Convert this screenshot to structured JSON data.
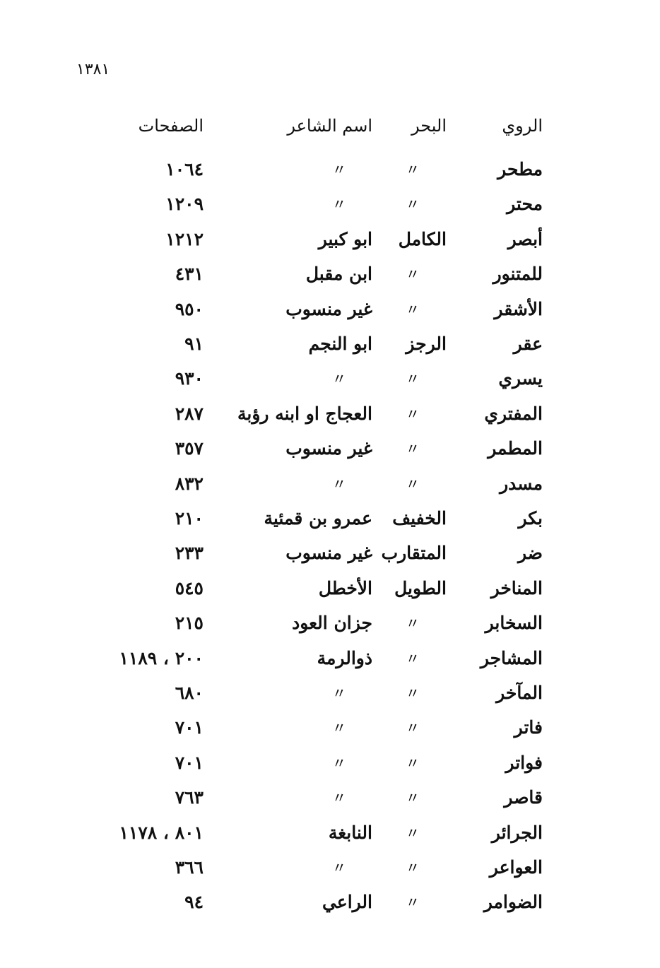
{
  "page_number": "١٣٨١",
  "table": {
    "headers": {
      "rawi": "الروي",
      "bahr": "البحر",
      "poet": "اسم الشاعر",
      "pages": "الصفحات"
    },
    "ditto_mark": "〃",
    "rows": [
      {
        "rawi": "مطحر",
        "bahr": "〃",
        "poet": "〃",
        "pages": "١٠٦٤"
      },
      {
        "rawi": "محتر",
        "bahr": "〃",
        "poet": "〃",
        "pages": "١٢٠٩"
      },
      {
        "rawi": "أبصر",
        "bahr": "الكامل",
        "poet": "ابو كبير",
        "pages": "١٢١٢"
      },
      {
        "rawi": "للمتنور",
        "bahr": "〃",
        "poet": "ابن مقبل",
        "pages": "٤٣١"
      },
      {
        "rawi": "الأشقر",
        "bahr": "〃",
        "poet": "غير منسوب",
        "pages": "٩٥٠"
      },
      {
        "rawi": "عقر",
        "bahr": "الرجز",
        "poet": "ابو النجم",
        "pages": "٩١"
      },
      {
        "rawi": "يسري",
        "bahr": "〃",
        "poet": "〃",
        "pages": "٩٣٠"
      },
      {
        "rawi": "المفتري",
        "bahr": "〃",
        "poet": "العجاج او ابنه رؤبة",
        "pages": "٢٨٧"
      },
      {
        "rawi": "المطمر",
        "bahr": "〃",
        "poet": "غير منسوب",
        "pages": "٣٥٧"
      },
      {
        "rawi": "مسدر",
        "bahr": "〃",
        "poet": "〃",
        "pages": "٨٣٢"
      },
      {
        "rawi": "بكر",
        "bahr": "الخفيف",
        "poet": "عمرو بن قمئية",
        "pages": "٢١٠"
      },
      {
        "rawi": "ضر",
        "bahr": "المتقارب",
        "poet": "غير منسوب",
        "pages": "٢٣٣"
      },
      {
        "rawi": "المناخر",
        "bahr": "الطويل",
        "poet": "الأخطل",
        "pages": "٥٤٥"
      },
      {
        "rawi": "السخابر",
        "bahr": "〃",
        "poet": "جزان العود",
        "pages": "٢١٥"
      },
      {
        "rawi": "المشاجر",
        "bahr": "〃",
        "poet": "ذوالرمة",
        "pages": "٢٠٠ ، ١١٨٩"
      },
      {
        "rawi": "المآخر",
        "bahr": "〃",
        "poet": "〃",
        "pages": "٦٨٠"
      },
      {
        "rawi": "فاتر",
        "bahr": "〃",
        "poet": "〃",
        "pages": "٧٠١"
      },
      {
        "rawi": "فواتر",
        "bahr": "〃",
        "poet": "〃",
        "pages": "٧٠١"
      },
      {
        "rawi": "قاصر",
        "bahr": "〃",
        "poet": "〃",
        "pages": "٧٦٣"
      },
      {
        "rawi": "الجرائر",
        "bahr": "〃",
        "poet": "النابغة",
        "pages": "٨٠١ ، ١١٧٨"
      },
      {
        "rawi": "العواعر",
        "bahr": "〃",
        "poet": "〃",
        "pages": "٣٦٦"
      },
      {
        "rawi": "الضوامر",
        "bahr": "〃",
        "poet": "الراعي",
        "pages": "٩٤"
      }
    ]
  }
}
